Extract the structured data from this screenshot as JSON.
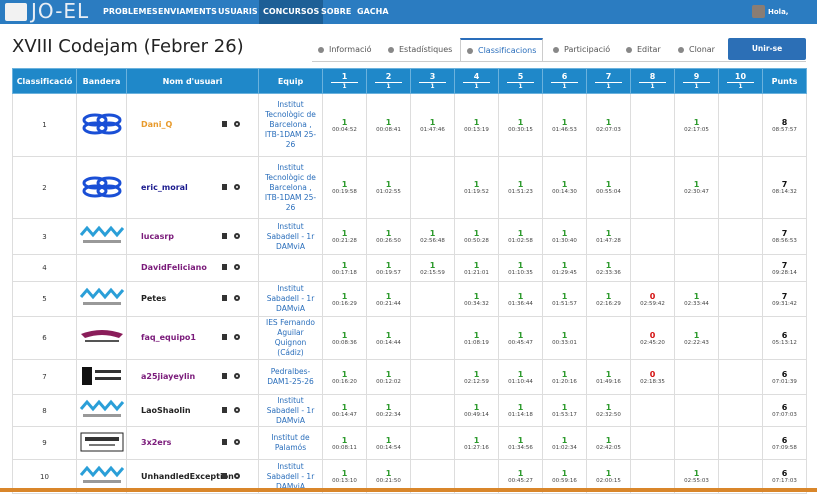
{
  "nav": {
    "brand": "JO-EL",
    "items": [
      "PROBLEMES",
      "ENVIAMENTS",
      "USUARIS",
      "CONCURSOS",
      "SOBRE",
      "GACHA"
    ],
    "active": 3,
    "greeting": "Hola, srivas."
  },
  "header": {
    "title": "XVIII Codejam (Febrer 26)",
    "tabs": [
      "Informació",
      "Estadístiques",
      "Classificacions",
      "Participació",
      "Editar",
      "Clonar"
    ],
    "active_tab": 2,
    "button": "Unir-se virtualment"
  },
  "table": {
    "columns": [
      "Classificació",
      "Bandera",
      "Nom d'usuari",
      "Equip"
    ],
    "problems": [
      {
        "label": "1",
        "sub": "1"
      },
      {
        "label": "2",
        "sub": "1"
      },
      {
        "label": "3",
        "sub": "1"
      },
      {
        "label": "4",
        "sub": "1"
      },
      {
        "label": "5",
        "sub": "1"
      },
      {
        "label": "6",
        "sub": "1"
      },
      {
        "label": "7",
        "sub": "1"
      },
      {
        "label": "8",
        "sub": "1"
      },
      {
        "label": "9",
        "sub": "1"
      },
      {
        "label": "10",
        "sub": "1"
      }
    ],
    "points_column": "Punts",
    "rows": [
      {
        "rank": 1,
        "user": "Dani_Q",
        "color": "#e89a2c",
        "team": "Institut Tecnològic de Barcelona , ITB-1DAM 25-26",
        "results": [
          {
            "score": 1,
            "time": "00:04:52"
          },
          {
            "score": 1,
            "time": "00:08:41"
          },
          {
            "score": 1,
            "time": "01:47:46"
          },
          {
            "score": 1,
            "time": "00:13:19"
          },
          {
            "score": 1,
            "time": "00:30:15"
          },
          {
            "score": 1,
            "time": "01:46:53"
          },
          {
            "score": 1,
            "time": "02:07:03"
          },
          null,
          {
            "score": 1,
            "time": "02:17:05"
          },
          null
        ],
        "points": 8,
        "total_time": "08:57:57"
      },
      {
        "rank": 2,
        "user": "eric_moral",
        "color": "#1b1b8f",
        "team": "Institut Tecnològic de Barcelona , ITB-1DAM 25-26",
        "results": [
          {
            "score": 1,
            "time": "00:19:58"
          },
          {
            "score": 1,
            "time": "01:02:55"
          },
          null,
          {
            "score": 1,
            "time": "01:19:52"
          },
          {
            "score": 1,
            "time": "01:51:23"
          },
          {
            "score": 1,
            "time": "00:14:30"
          },
          {
            "score": 1,
            "time": "00:55:04"
          },
          null,
          {
            "score": 1,
            "time": "02:30:47"
          },
          null
        ],
        "points": 7,
        "total_time": "08:14:32"
      },
      {
        "rank": 3,
        "user": "lucasrp",
        "color": "#7a1a7a",
        "team": "Institut Sabadell - 1r DAMviA",
        "results": [
          {
            "score": 1,
            "time": "00:21:28"
          },
          {
            "score": 1,
            "time": "00:26:50"
          },
          {
            "score": 1,
            "time": "02:56:48"
          },
          {
            "score": 1,
            "time": "00:50:28"
          },
          {
            "score": 1,
            "time": "01:02:58"
          },
          {
            "score": 1,
            "time": "01:30:40"
          },
          {
            "score": 1,
            "time": "01:47:28"
          },
          null,
          null,
          null
        ],
        "points": 7,
        "total_time": "08:56:53"
      },
      {
        "rank": 4,
        "user": "DavidFeliciano",
        "color": "#7a1a7a",
        "team": "",
        "results": [
          {
            "score": 1,
            "time": "00:17:18"
          },
          {
            "score": 1,
            "time": "00:19:57"
          },
          {
            "score": 1,
            "time": "02:15:59"
          },
          {
            "score": 1,
            "time": "01:21:01"
          },
          {
            "score": 1,
            "time": "01:10:35"
          },
          {
            "score": 1,
            "time": "01:29:45"
          },
          {
            "score": 1,
            "time": "02:33:36"
          },
          null,
          null,
          null
        ],
        "points": 7,
        "total_time": "09:28:14"
      },
      {
        "rank": 5,
        "user": "Petes",
        "color": "#222222",
        "team": "Institut Sabadell - 1r DAMviA",
        "results": [
          {
            "score": 1,
            "time": "00:16:29"
          },
          {
            "score": 1,
            "time": "00:21:44"
          },
          null,
          {
            "score": 1,
            "time": "00:34:32"
          },
          {
            "score": 1,
            "time": "01:36:44"
          },
          {
            "score": 1,
            "time": "01:51:57"
          },
          {
            "score": 1,
            "time": "02:16:29"
          },
          {
            "score": 0,
            "time": "02:59:42"
          },
          {
            "score": 1,
            "time": "02:33:44"
          },
          null
        ],
        "points": 7,
        "total_time": "09:31:42"
      },
      {
        "rank": 6,
        "user": "faq_equipo1",
        "color": "#7a1a7a",
        "team": "IES Fernando Aguilar Quignon (Cádiz)",
        "results": [
          {
            "score": 1,
            "time": "00:08:36"
          },
          {
            "score": 1,
            "time": "00:14:44"
          },
          null,
          {
            "score": 1,
            "time": "01:08:19"
          },
          {
            "score": 1,
            "time": "00:45:47"
          },
          {
            "score": 1,
            "time": "00:33:01"
          },
          null,
          {
            "score": 0,
            "time": "02:45:20"
          },
          {
            "score": 1,
            "time": "02:22:43"
          },
          null
        ],
        "points": 6,
        "total_time": "05:13:12"
      },
      {
        "rank": 7,
        "user": "a25jiayeylin",
        "color": "#7a1a7a",
        "team": "Pedralbes-DAM1-25-26",
        "results": [
          {
            "score": 1,
            "time": "00:16:20"
          },
          {
            "score": 1,
            "time": "00:12:02"
          },
          null,
          {
            "score": 1,
            "time": "02:12:59"
          },
          {
            "score": 1,
            "time": "01:10:44"
          },
          {
            "score": 1,
            "time": "01:20:16"
          },
          {
            "score": 1,
            "time": "01:49:16"
          },
          {
            "score": 0,
            "time": "02:18:35"
          },
          null,
          null
        ],
        "points": 6,
        "total_time": "07:01:39"
      },
      {
        "rank": 8,
        "user": "LaoShaolin",
        "color": "#222222",
        "team": "Institut Sabadell - 1r DAMviA",
        "results": [
          {
            "score": 1,
            "time": "00:14:47"
          },
          {
            "score": 1,
            "time": "00:22:34"
          },
          null,
          {
            "score": 1,
            "time": "00:49:14"
          },
          {
            "score": 1,
            "time": "01:14:18"
          },
          {
            "score": 1,
            "time": "01:53:17"
          },
          {
            "score": 1,
            "time": "02:32:50"
          },
          null,
          null,
          null
        ],
        "points": 6,
        "total_time": "07:07:03"
      },
      {
        "rank": 9,
        "user": "3x2ers",
        "color": "#7a1a7a",
        "team": "Institut de Palamós",
        "results": [
          {
            "score": 1,
            "time": "00:08:11"
          },
          {
            "score": 1,
            "time": "00:14:54"
          },
          null,
          {
            "score": 1,
            "time": "01:27:16"
          },
          {
            "score": 1,
            "time": "01:34:56"
          },
          {
            "score": 1,
            "time": "01:02:34"
          },
          {
            "score": 1,
            "time": "02:42:05"
          },
          null,
          null,
          null
        ],
        "points": 6,
        "total_time": "07:09:58"
      },
      {
        "rank": 10,
        "user": "UnhandledException",
        "color": "#222222",
        "team": "Institut Sabadell - 1r DAMviA",
        "results": [
          {
            "score": 1,
            "time": "00:13:10"
          },
          {
            "score": 1,
            "time": "00:21:50"
          },
          null,
          null,
          {
            "score": 1,
            "time": "00:45:27"
          },
          {
            "score": 1,
            "time": "00:59:16"
          },
          {
            "score": 1,
            "time": "02:00:15"
          },
          null,
          {
            "score": 1,
            "time": "02:55:03"
          },
          null
        ],
        "points": 6,
        "total_time": "07:17:03"
      }
    ]
  }
}
